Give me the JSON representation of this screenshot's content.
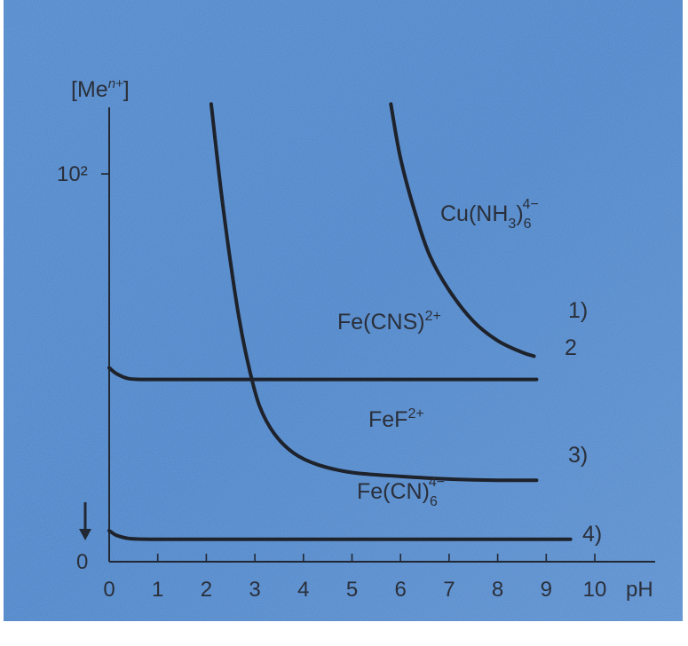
{
  "chart_data": {
    "type": "line",
    "title": "",
    "xlabel": "pH",
    "ylabel": "[Me^n+]",
    "xlim": [
      0,
      10.6
    ],
    "x_ticks": [
      "0",
      "1",
      "2",
      "3",
      "4",
      "5",
      "6",
      "7",
      "8",
      "9",
      "10"
    ],
    "y_ticks": [
      "0",
      "10²"
    ],
    "grid": false,
    "colors": {
      "background": "#4f86c9",
      "line": "#1e222b",
      "text": "#2a2f3a"
    },
    "series": [
      {
        "name": "Cu(NH3)6 4−",
        "label_main": "Cu(NH",
        "label_sub1": "3",
        "label_mid": ")",
        "label_sub2": "6",
        "label_sup": "4−",
        "number": "1)",
        "points": [
          [
            5.8,
            118
          ],
          [
            6.0,
            104
          ],
          [
            6.3,
            90
          ],
          [
            6.6,
            79
          ],
          [
            7.0,
            70
          ],
          [
            7.5,
            62
          ],
          [
            8.0,
            57
          ],
          [
            8.5,
            54
          ],
          [
            8.75,
            53
          ]
        ]
      },
      {
        "name": "Fe(CNS)2+",
        "label_main": "Fe(CNS)",
        "label_sup": "2+",
        "number": "2",
        "points": [
          [
            0,
            50
          ],
          [
            0.15,
            48.5
          ],
          [
            0.4,
            47.2
          ],
          [
            0.8,
            47
          ],
          [
            2,
            47
          ],
          [
            4,
            47
          ],
          [
            6,
            47
          ],
          [
            8,
            47
          ],
          [
            8.8,
            47
          ]
        ]
      },
      {
        "name": "FeF2+",
        "label_main": "FeF",
        "label_sup": "2+",
        "number": "3)",
        "points": [
          [
            2.1,
            118
          ],
          [
            2.3,
            96
          ],
          [
            2.5,
            77
          ],
          [
            2.7,
            61
          ],
          [
            2.9,
            49
          ],
          [
            3.1,
            40
          ],
          [
            3.4,
            33
          ],
          [
            3.8,
            28
          ],
          [
            4.3,
            25
          ],
          [
            5,
            23
          ],
          [
            6,
            22
          ],
          [
            7,
            21.3
          ],
          [
            8,
            21
          ],
          [
            8.8,
            21
          ]
        ]
      },
      {
        "name": "Fe(CN)6 4−",
        "label_main": "Fe(CN)",
        "label_sub2": "6",
        "label_sup": "4−",
        "number": "4)",
        "points": [
          [
            0,
            8
          ],
          [
            0.15,
            6.8
          ],
          [
            0.4,
            6
          ],
          [
            0.8,
            5.8
          ],
          [
            2,
            5.8
          ],
          [
            5,
            5.8
          ],
          [
            8,
            5.8
          ],
          [
            9.5,
            5.8
          ]
        ]
      }
    ]
  }
}
